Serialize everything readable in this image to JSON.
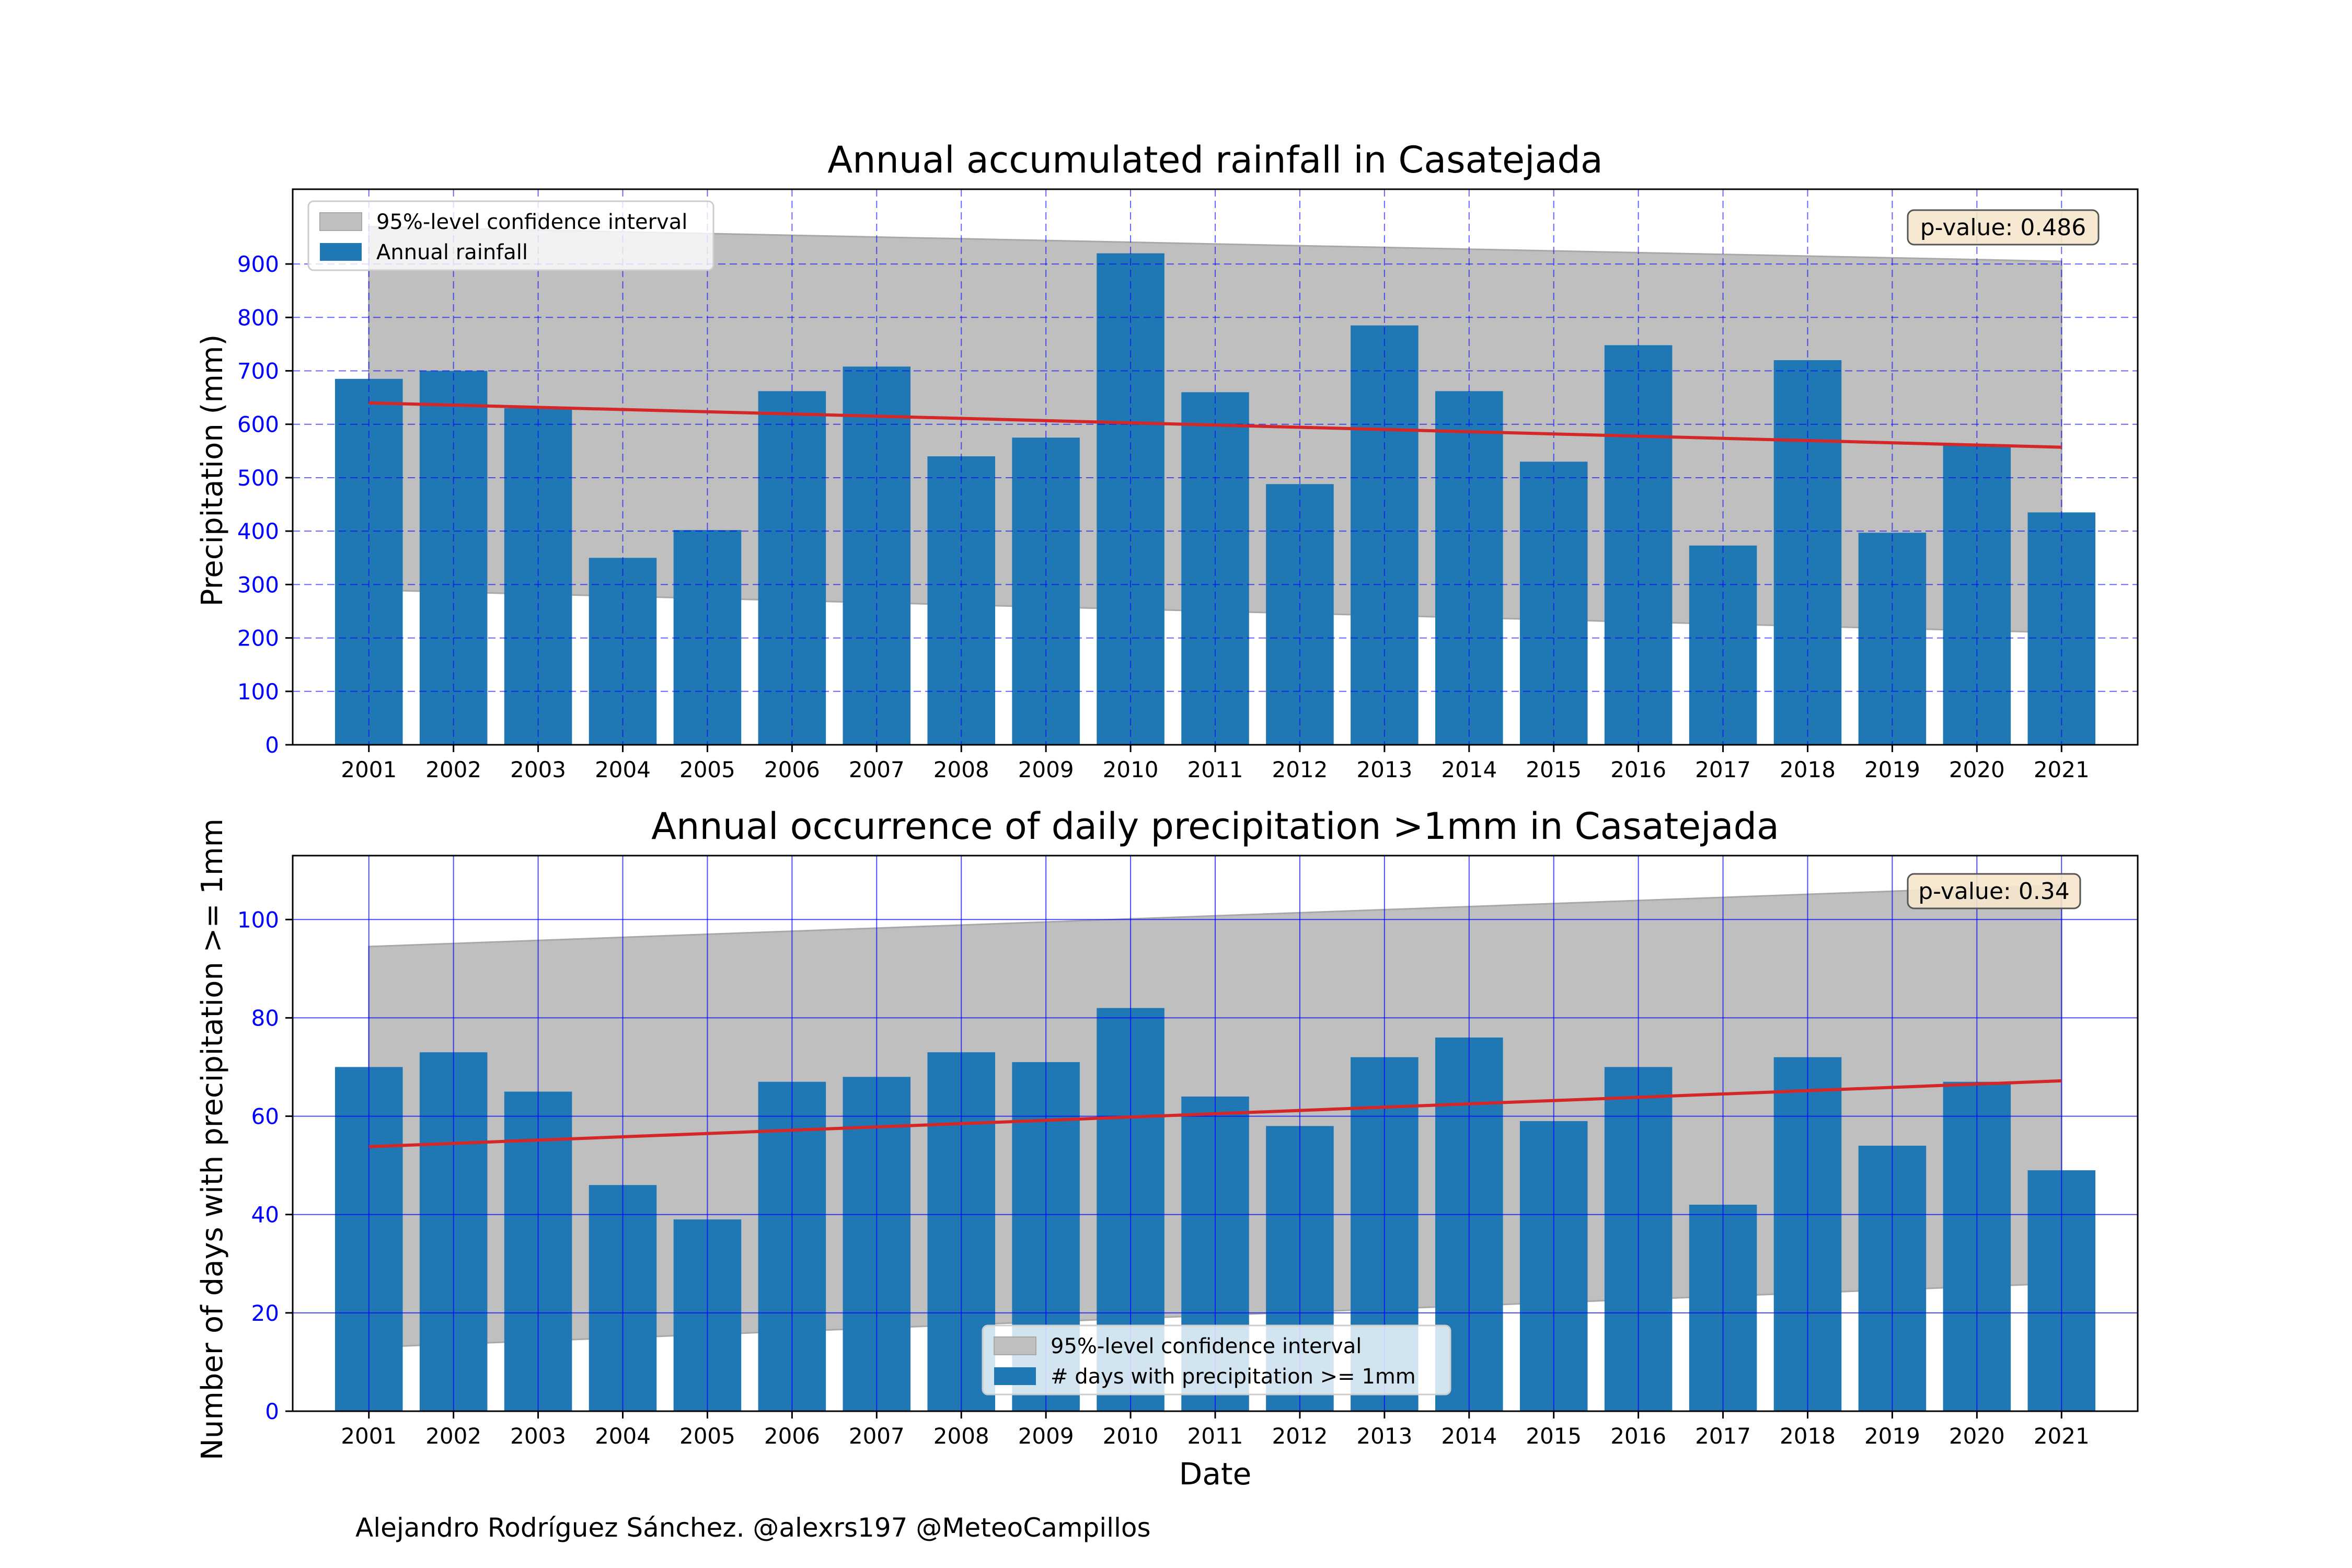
{
  "footer": "Alejandro Rodríguez Sánchez. @alexrs197 @MeteoCampillos",
  "colors": {
    "bar": "#1f77b4",
    "trend": "#d62728",
    "band": "#bfbfbf",
    "grid": "#0000ff",
    "tick": "#0000ff",
    "pvalue_box": "#f5e6cc"
  },
  "chart_data": [
    {
      "type": "bar",
      "title": "Annual accumulated rainfall in Casatejada",
      "xlabel": "",
      "ylabel": "Precipitation (mm)",
      "categories": [
        "2001",
        "2002",
        "2003",
        "2004",
        "2005",
        "2006",
        "2007",
        "2008",
        "2009",
        "2010",
        "2011",
        "2012",
        "2013",
        "2014",
        "2015",
        "2016",
        "2017",
        "2018",
        "2019",
        "2020",
        "2021"
      ],
      "values": [
        685,
        700,
        630,
        350,
        402,
        662,
        708,
        540,
        575,
        920,
        660,
        488,
        785,
        662,
        530,
        748,
        373,
        720,
        397,
        560,
        435
      ],
      "ylim": [
        0,
        1040
      ],
      "yticks": [
        0,
        100,
        200,
        300,
        400,
        500,
        600,
        700,
        800,
        900
      ],
      "trend": {
        "start": 640,
        "end": 557
      },
      "confidence_band": {
        "upper_start": 970,
        "upper_end": 905,
        "lower_start": 290,
        "lower_end": 210
      },
      "grid": "dashed",
      "legend": {
        "placement": "upper-left",
        "entries": [
          "95%-level confidence interval",
          "Annual rainfall"
        ]
      },
      "p_value_label": "p-value: 0.486"
    },
    {
      "type": "bar",
      "title": "Annual occurrence of daily precipitation >1mm in Casatejada",
      "xlabel": "Date",
      "ylabel": "Number of days with precipitation >= 1mm",
      "categories": [
        "2001",
        "2002",
        "2003",
        "2004",
        "2005",
        "2006",
        "2007",
        "2008",
        "2009",
        "2010",
        "2011",
        "2012",
        "2013",
        "2014",
        "2015",
        "2016",
        "2017",
        "2018",
        "2019",
        "2020",
        "2021"
      ],
      "values": [
        70,
        73,
        65,
        46,
        39,
        67,
        68,
        73,
        71,
        82,
        64,
        58,
        72,
        76,
        59,
        70,
        42,
        72,
        54,
        67,
        49
      ],
      "ylim": [
        0,
        113
      ],
      "yticks": [
        0,
        20,
        40,
        60,
        80,
        100
      ],
      "trend": {
        "start": 53.8,
        "end": 67.2
      },
      "confidence_band": {
        "upper_start": 94.5,
        "upper_end": 107,
        "lower_start": 13,
        "lower_end": 26
      },
      "grid": "solid",
      "legend": {
        "placement": "lower-center",
        "entries": [
          "95%-level confidence interval",
          "# days with precipitation >= 1mm"
        ]
      },
      "p_value_label": "p-value: 0.34"
    }
  ]
}
